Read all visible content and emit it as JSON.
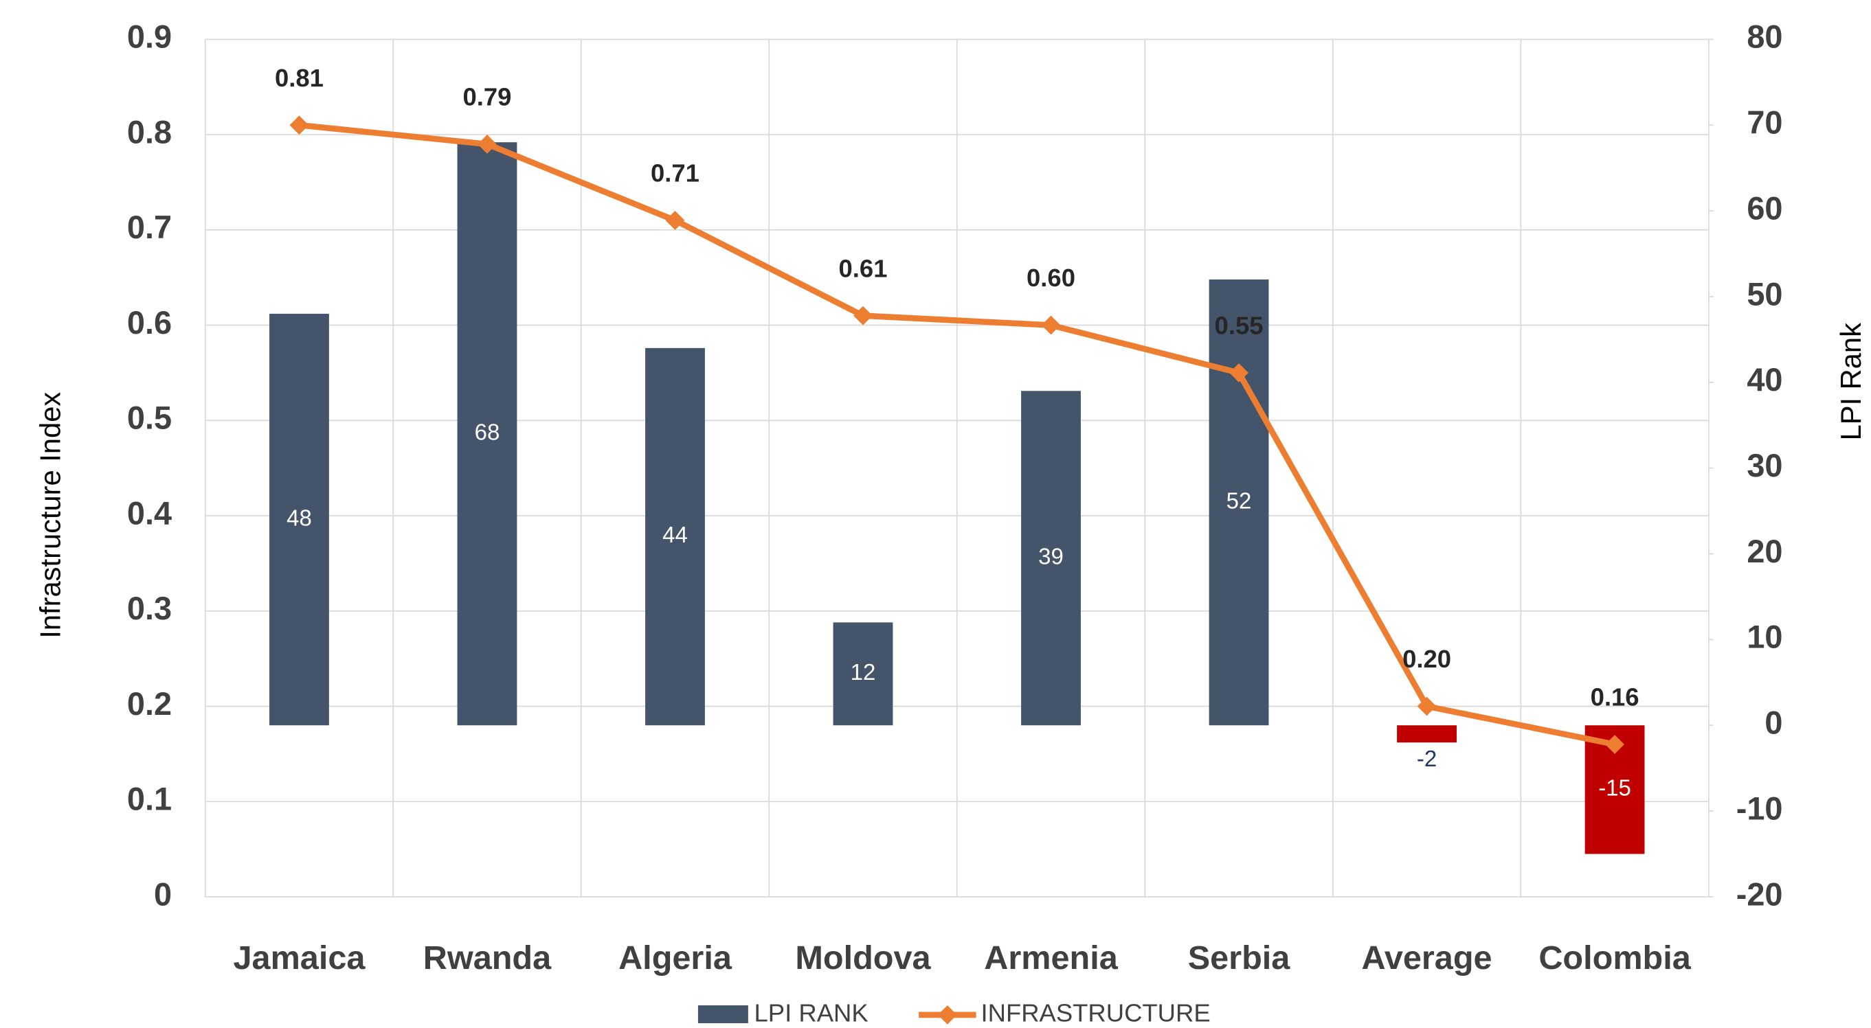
{
  "chart_data": {
    "type": "combo",
    "categories": [
      "Jamaica",
      "Rwanda",
      "Algeria",
      "Moldova",
      "Armenia",
      "Serbia",
      "Average",
      "Colombia"
    ],
    "series": [
      {
        "name": "LPI RANK",
        "type": "bar",
        "axis": "y2",
        "color": "#44546a",
        "colors": [
          "#44546a",
          "#44546a",
          "#44546a",
          "#44546a",
          "#44546a",
          "#44546a",
          "#c00000",
          "#c00000"
        ],
        "values": [
          48,
          68,
          44,
          12,
          39,
          52,
          -2,
          -15
        ]
      },
      {
        "name": "INFRASTRUCTURE",
        "type": "line",
        "color": "#ed7d31",
        "values": [
          0.81,
          0.79,
          0.71,
          0.61,
          0.6,
          0.55,
          0.2,
          0.16
        ],
        "value_labels": [
          "0.81",
          "0.79",
          "0.71",
          "0.61",
          "0.60",
          "0.55",
          "0.20",
          "0.16"
        ]
      }
    ],
    "y_label": "Infrastructure Index",
    "y2_label": "LPI Rank",
    "ylim": [
      0,
      0.9
    ],
    "yticks": [
      0,
      0.1,
      0.2,
      0.3,
      0.4,
      0.5,
      0.6,
      0.7,
      0.8,
      0.9
    ],
    "y2lim": [
      -20,
      80
    ],
    "y2ticks": [
      -20,
      -10,
      0,
      10,
      20,
      30,
      40,
      50,
      60,
      70,
      80
    ],
    "grid": true,
    "legend": "bottom"
  }
}
